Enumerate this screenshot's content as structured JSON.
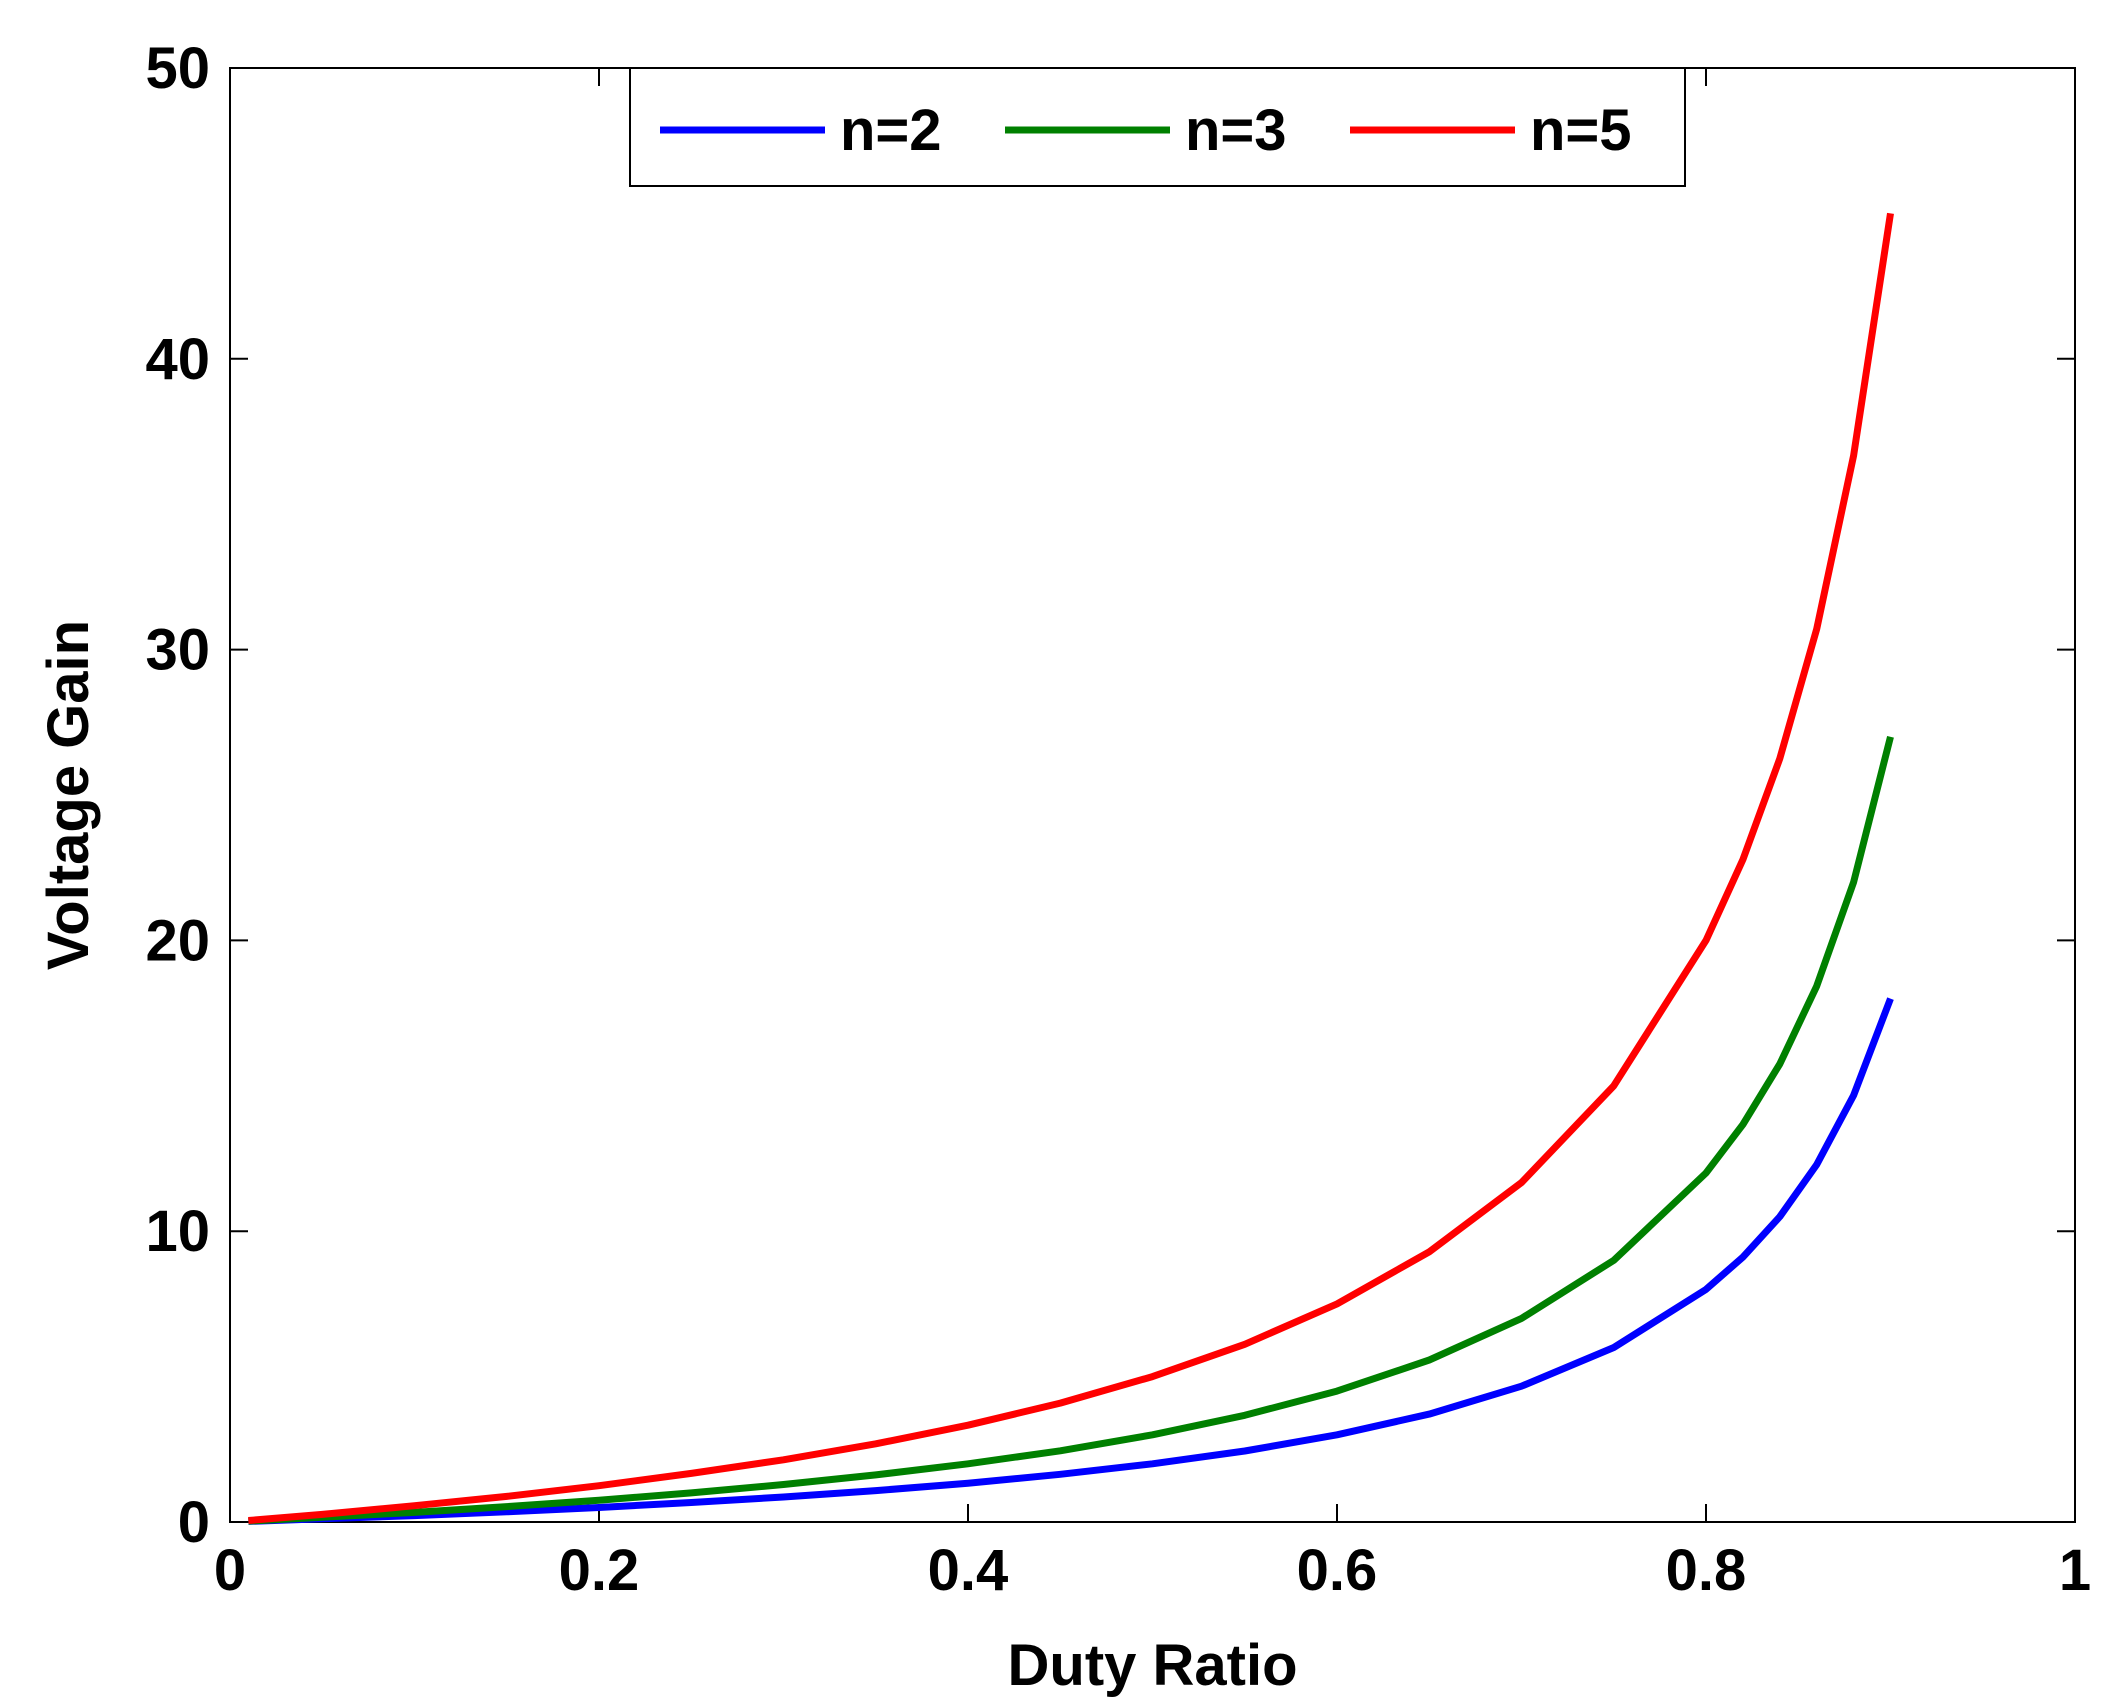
{
  "chart_data": {
    "type": "line",
    "title": "",
    "xlabel": "Duty Ratio",
    "ylabel": "Voltage Gain",
    "xlim": [
      0,
      1
    ],
    "ylim": [
      0,
      50
    ],
    "xticks": [
      0,
      0.2,
      0.4,
      0.6,
      0.8,
      1
    ],
    "xtick_labels": [
      "0",
      "0.2",
      "0.4",
      "0.6",
      "0.8",
      "1"
    ],
    "yticks": [
      0,
      10,
      20,
      30,
      40,
      50
    ],
    "ytick_labels": [
      "0",
      "10",
      "20",
      "30",
      "40",
      "50"
    ],
    "grid": false,
    "legend_position": "top-center",
    "x": [
      0.01,
      0.05,
      0.1,
      0.15,
      0.2,
      0.25,
      0.3,
      0.35,
      0.4,
      0.45,
      0.5,
      0.55,
      0.6,
      0.65,
      0.7,
      0.75,
      0.8,
      0.82,
      0.84,
      0.86,
      0.88,
      0.9
    ],
    "series": [
      {
        "name": "n=2",
        "color": "#0000ff",
        "values": [
          0.02,
          0.11,
          0.22,
          0.35,
          0.5,
          0.67,
          0.86,
          1.08,
          1.33,
          1.64,
          2.0,
          2.44,
          3.0,
          3.71,
          4.67,
          6.0,
          8.0,
          9.11,
          10.5,
          12.29,
          14.67,
          18.0
        ]
      },
      {
        "name": "n=3",
        "color": "#008000",
        "values": [
          0.03,
          0.16,
          0.33,
          0.53,
          0.75,
          1.0,
          1.29,
          1.62,
          2.0,
          2.45,
          3.0,
          3.67,
          4.5,
          5.57,
          7.0,
          9.0,
          12.0,
          13.67,
          15.75,
          18.43,
          22.0,
          27.0
        ]
      },
      {
        "name": "n=5",
        "color": "#ff0000",
        "values": [
          0.05,
          0.26,
          0.56,
          0.88,
          1.25,
          1.67,
          2.14,
          2.69,
          3.33,
          4.09,
          5.0,
          6.11,
          7.5,
          9.29,
          11.67,
          15.0,
          20.0,
          22.78,
          26.25,
          30.71,
          36.67,
          45.0
        ]
      }
    ]
  }
}
